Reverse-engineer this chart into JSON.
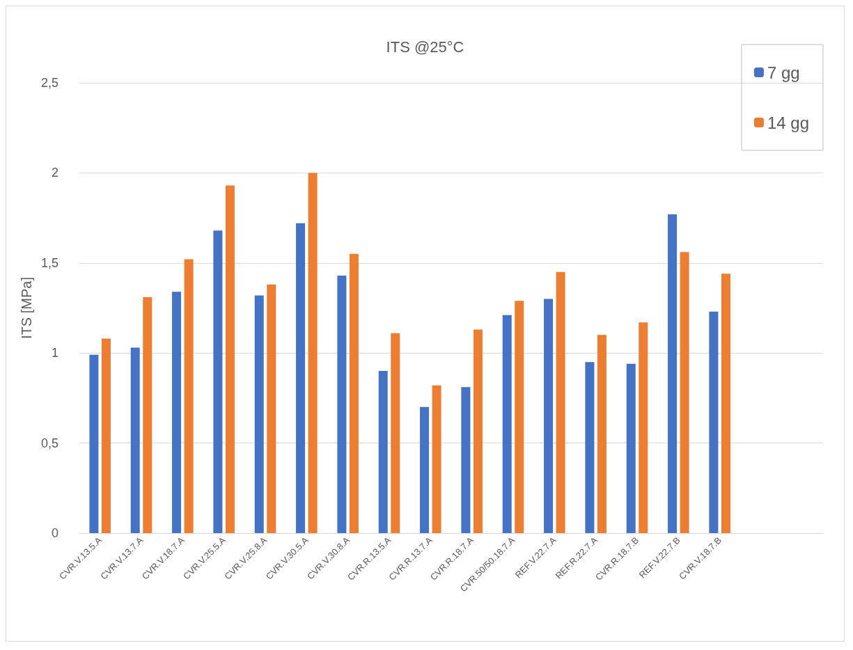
{
  "chart_data": {
    "type": "bar",
    "title": "ITS @25°C",
    "ylabel": "ITS [MPa]",
    "categories": [
      "CVR.V.13.5.A",
      "CVR.V.13.7.A",
      "CVR.V.18.7.A",
      "CVR.V.25.5.A",
      "CVR.V.25.8.A",
      "CVR.V.30.5.A",
      "CVR.V.30.8.A",
      "CVR.R.13.5.A",
      "CVR.R.13.7.A",
      "CVR.R.18.7.A",
      "CVR.50/50.18.7.A",
      "REF.V.22.7.A",
      "REF.R.22.7.A",
      "CVR.R.18.7.B",
      "REF.V.22.7.B",
      "CVR.V.18.7.B",
      null,
      null
    ],
    "series": [
      {
        "name": "7 gg",
        "color": "#4472c4",
        "values": [
          0.99,
          1.03,
          1.34,
          1.68,
          1.32,
          1.72,
          1.43,
          0.9,
          0.7,
          0.81,
          1.21,
          1.3,
          0.95,
          0.94,
          1.77,
          1.23,
          null,
          null
        ]
      },
      {
        "name": "14 gg",
        "color": "#ed7d31",
        "values": [
          1.08,
          1.31,
          1.52,
          1.93,
          1.38,
          2.0,
          1.55,
          1.11,
          0.82,
          1.13,
          1.29,
          1.45,
          1.1,
          1.17,
          1.56,
          1.44,
          null,
          null
        ]
      }
    ],
    "ylim": [
      0,
      2.5
    ],
    "yticks": [
      0,
      {
        "value": 0.5,
        "label": "0,5"
      },
      1,
      {
        "value": 1.5,
        "label": "1,5"
      },
      2,
      {
        "value": 2.5,
        "label": "2,5"
      }
    ],
    "grid": "y",
    "legend": "top right"
  }
}
